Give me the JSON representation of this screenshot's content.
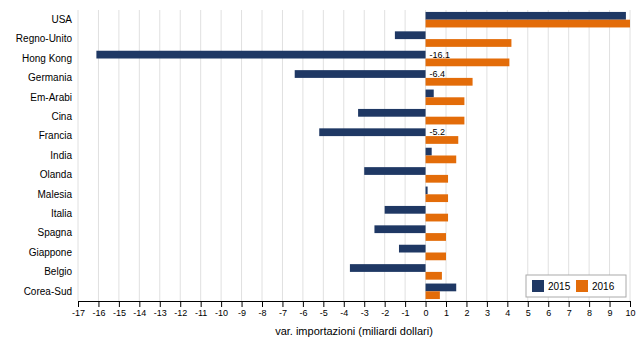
{
  "chart_data": {
    "type": "bar",
    "orientation": "horizontal",
    "categories": [
      "USA",
      "Regno-Unito",
      "Hong Kong",
      "Germania",
      "Em-Arabi",
      "Cina",
      "Francia",
      "India",
      "Olanda",
      "Malesia",
      "Italia",
      "Spagna",
      "Giappone",
      "Belgio",
      "Corea-Sud"
    ],
    "series": [
      {
        "name": "2015",
        "color": "#1F3864",
        "values": [
          9.8,
          -1.5,
          -16.1,
          -6.4,
          0.4,
          -3.3,
          -5.2,
          0.3,
          -3.0,
          0.1,
          -2.0,
          -2.5,
          -1.3,
          -3.7,
          1.5
        ]
      },
      {
        "name": "2016",
        "color": "#E36C09",
        "values": [
          10.0,
          4.2,
          4.1,
          2.3,
          1.9,
          1.9,
          1.6,
          1.5,
          1.1,
          1.1,
          1.1,
          1.0,
          1.0,
          0.8,
          0.7
        ]
      }
    ],
    "x_label": "var. importazioni (miliardi dollari)",
    "xlim": [
      -17,
      10
    ],
    "xticks": [
      -17,
      -16,
      -15,
      -14,
      -13,
      -12,
      -11,
      -10,
      -9,
      -8,
      -7,
      -6,
      -5,
      -4,
      -3,
      -2,
      -1,
      0,
      1,
      2,
      3,
      4,
      5,
      6,
      7,
      8,
      9,
      10
    ],
    "grid": true,
    "legend": "bottom-right",
    "annotations": [
      {
        "category": "Hong Kong",
        "text": "-16.1"
      },
      {
        "category": "Germania",
        "text": "-6.4"
      },
      {
        "category": "Francia",
        "text": "-5.2"
      }
    ]
  }
}
